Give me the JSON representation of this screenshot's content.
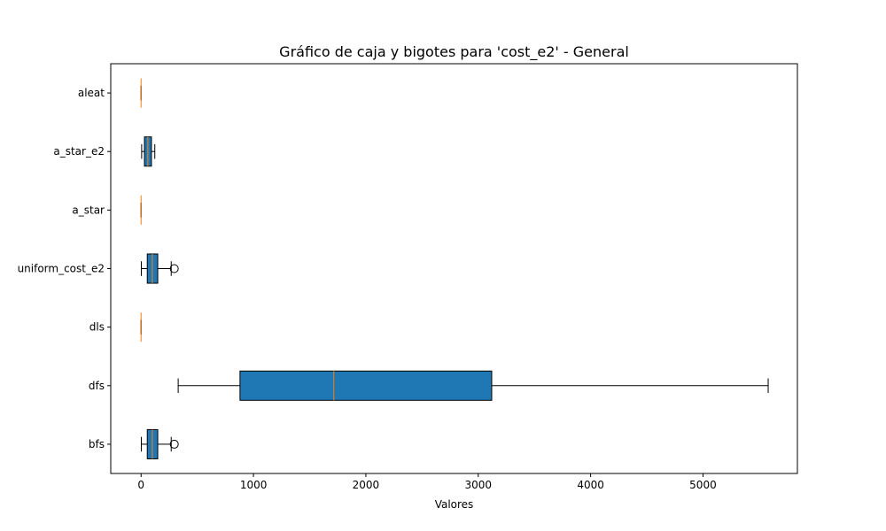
{
  "chart_data": {
    "type": "boxplot",
    "title": "Gráfico de caja y bigotes para 'cost_e2' - General",
    "xlabel": "Valores",
    "ylabel": "",
    "xlim": [
      -270,
      5840
    ],
    "xticks": [
      0,
      1000,
      2000,
      3000,
      4000,
      5000
    ],
    "orientation": "horizontal",
    "grid": false,
    "box_color": "#1f77b4",
    "median_color": "#ff7f0e",
    "categories": [
      "bfs",
      "dfs",
      "dls",
      "uniform_cost_e2",
      "a_star",
      "a_star_e2",
      "aleat"
    ],
    "boxes": [
      {
        "name": "bfs",
        "whisker_low": 2,
        "q1": 55,
        "median": 100,
        "q3": 148,
        "whisker_high": 268,
        "outliers": [
          295
        ]
      },
      {
        "name": "dfs",
        "whisker_low": 330,
        "q1": 880,
        "median": 1715,
        "q3": 3120,
        "whisker_high": 5580,
        "outliers": []
      },
      {
        "name": "dls",
        "whisker_low": 0,
        "q1": 0,
        "median": 0,
        "q3": 0,
        "whisker_high": 0,
        "outliers": []
      },
      {
        "name": "uniform_cost_e2",
        "whisker_low": 2,
        "q1": 55,
        "median": 100,
        "q3": 148,
        "whisker_high": 268,
        "outliers": [
          295
        ]
      },
      {
        "name": "a_star",
        "whisker_low": 0,
        "q1": 0,
        "median": 0,
        "q3": 0,
        "whisker_high": 0,
        "outliers": []
      },
      {
        "name": "a_star_e2",
        "whisker_low": 5,
        "q1": 30,
        "median": 60,
        "q3": 92,
        "whisker_high": 122,
        "outliers": []
      },
      {
        "name": "aleat",
        "whisker_low": 0,
        "q1": 0,
        "median": 0,
        "q3": 0,
        "whisker_high": 0,
        "outliers": []
      }
    ]
  }
}
